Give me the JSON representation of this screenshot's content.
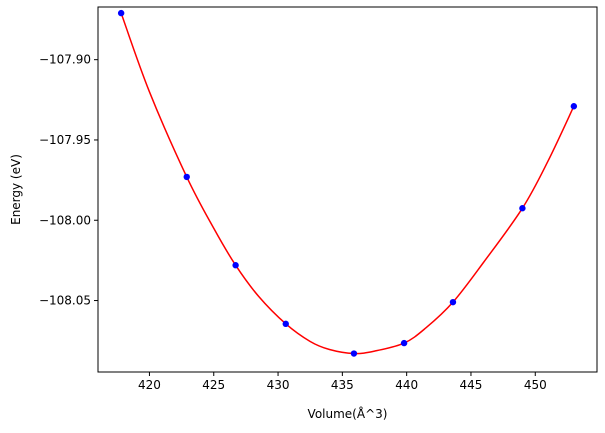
{
  "chart_data": {
    "type": "line",
    "title": "",
    "xlabel": "Volume(Å^3)",
    "ylabel": "Energy (eV)",
    "xlim": [
      416.0,
      454.8
    ],
    "ylim": [
      -108.0945,
      -107.8672
    ],
    "xticks": [
      420,
      425,
      430,
      435,
      440,
      445,
      450
    ],
    "yticks": [
      -107.9,
      -107.95,
      -108.0,
      -108.05
    ],
    "xtick_labels": [
      "420",
      "425",
      "430",
      "435",
      "440",
      "445",
      "450"
    ],
    "ytick_labels": [
      "−107.90",
      "−107.95",
      "−108.00",
      "−108.05"
    ],
    "grid": false,
    "legend": "none",
    "series": [
      {
        "kind": "points",
        "color": "#0000ff",
        "x": [
          417.8,
          422.9,
          426.7,
          430.6,
          435.9,
          439.8,
          443.6,
          449.0,
          453.0
        ],
        "y": [
          -107.871,
          -107.973,
          -108.028,
          -108.0645,
          -108.083,
          -108.0765,
          -108.051,
          -107.9925,
          -107.929
        ]
      },
      {
        "kind": "fit",
        "color": "#ff0000",
        "x": [
          417.8,
          420.0,
          422.9,
          425.0,
          426.7,
          428.5,
          430.6,
          432.5,
          434.0,
          435.9,
          437.5,
          439.8,
          441.5,
          443.6,
          446.0,
          449.0,
          451.0,
          453.0
        ],
        "y": [
          -107.871,
          -107.92,
          -107.973,
          -108.005,
          -108.028,
          -108.0475,
          -108.0645,
          -108.0755,
          -108.0805,
          -108.083,
          -108.0815,
          -108.0765,
          -108.067,
          -108.051,
          -108.026,
          -107.9925,
          -107.963,
          -107.929
        ]
      }
    ]
  }
}
